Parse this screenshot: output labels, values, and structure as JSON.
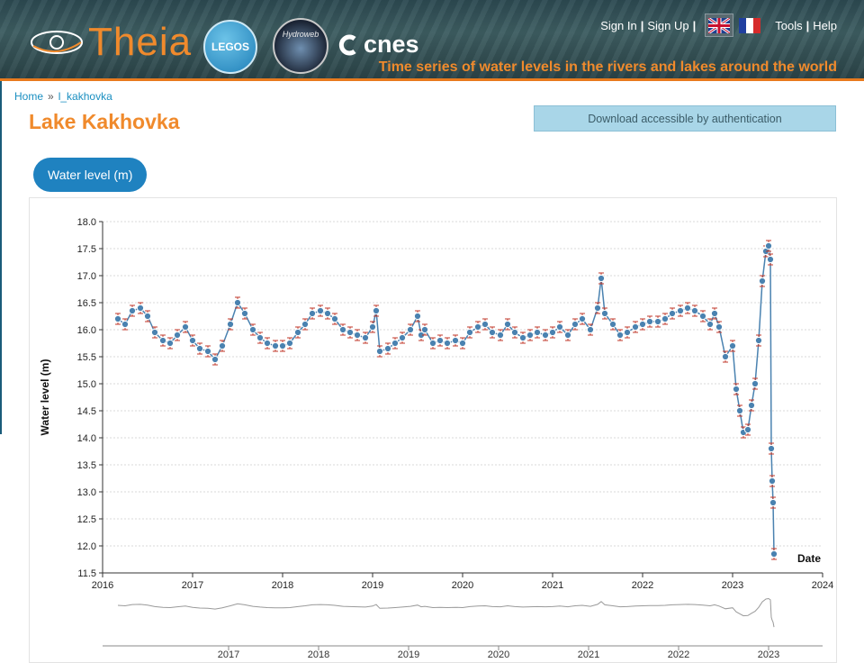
{
  "header": {
    "brand": "Theia",
    "partner_logos": [
      "LEGOS",
      "Hydroweb",
      "cnes"
    ],
    "nav": {
      "sign_in": "Sign In",
      "sign_up": "Sign Up",
      "tools": "Tools",
      "help": "Help"
    },
    "languages": [
      "english-flag",
      "french-flag"
    ],
    "tagline": "Time series of water levels in the rivers and lakes around the world"
  },
  "breadcrumb": {
    "home": "Home",
    "separator": "»",
    "current": "l_kakhovka"
  },
  "page_title": "Lake Kakhovka",
  "download_label": "Download accessible by authentication",
  "tab_label": "Water level (m)",
  "colors": {
    "accent_orange": "#f08a2c",
    "link_blue": "#1a8fc1",
    "series": "#4a82b0",
    "error_bar": "#c0392b"
  },
  "chart_data": {
    "type": "scatter",
    "title": "",
    "xlabel": "Date",
    "ylabel": "Water level (m)",
    "xlim": [
      2016,
      2024
    ],
    "ylim": [
      11.5,
      18.0
    ],
    "x_ticks": [
      "2016",
      "2017",
      "2018",
      "2019",
      "2020",
      "2021",
      "2022",
      "2023",
      "2024"
    ],
    "y_ticks": [
      "11.5",
      "12.0",
      "12.5",
      "13.0",
      "13.5",
      "14.0",
      "14.5",
      "15.0",
      "15.5",
      "16.0",
      "16.5",
      "17.0",
      "17.5",
      "18.0"
    ],
    "grid": true,
    "overview_ticks": [
      "2017",
      "2018",
      "2019",
      "2020",
      "2021",
      "2022",
      "2023"
    ],
    "series": [
      {
        "x": [
          2016.17,
          2016.25,
          2016.33,
          2016.42,
          2016.5,
          2016.58,
          2016.67,
          2016.75,
          2016.83,
          2016.92,
          2017.0,
          2017.08,
          2017.17,
          2017.25,
          2017.33,
          2017.42,
          2017.5,
          2017.58,
          2017.67,
          2017.75,
          2017.83,
          2017.92,
          2018.0,
          2018.08,
          2018.17,
          2018.25,
          2018.33,
          2018.42,
          2018.5,
          2018.58,
          2018.67,
          2018.75,
          2018.83,
          2018.92,
          2019.0,
          2019.04,
          2019.08,
          2019.17,
          2019.25,
          2019.33,
          2019.42,
          2019.5,
          2019.54,
          2019.58,
          2019.67,
          2019.75,
          2019.83,
          2019.92,
          2020.0,
          2020.08,
          2020.17,
          2020.25,
          2020.33,
          2020.42,
          2020.5,
          2020.58,
          2020.67,
          2020.75,
          2020.83,
          2020.92,
          2021.0,
          2021.08,
          2021.17,
          2021.25,
          2021.33,
          2021.42,
          2021.5,
          2021.54,
          2021.58,
          2021.67,
          2021.75,
          2021.83,
          2021.92,
          2022.0,
          2022.08,
          2022.17,
          2022.25,
          2022.33,
          2022.42,
          2022.5,
          2022.58,
          2022.67,
          2022.75,
          2022.8,
          2022.85,
          2022.92,
          2023.0,
          2023.04,
          2023.08,
          2023.12,
          2023.17,
          2023.21,
          2023.25,
          2023.29,
          2023.33,
          2023.37,
          2023.4,
          2023.42,
          2023.43,
          2023.44,
          2023.45,
          2023.46
        ],
        "y": [
          16.2,
          16.1,
          16.35,
          16.4,
          16.25,
          15.95,
          15.8,
          15.75,
          15.9,
          16.05,
          15.8,
          15.65,
          15.6,
          15.45,
          15.7,
          16.1,
          16.5,
          16.3,
          16.0,
          15.85,
          15.75,
          15.7,
          15.7,
          15.75,
          15.95,
          16.1,
          16.3,
          16.35,
          16.3,
          16.2,
          16.0,
          15.95,
          15.9,
          15.85,
          16.05,
          16.35,
          15.6,
          15.65,
          15.75,
          15.85,
          16.0,
          16.25,
          15.9,
          16.0,
          15.75,
          15.8,
          15.75,
          15.8,
          15.75,
          15.95,
          16.05,
          16.1,
          15.95,
          15.9,
          16.1,
          15.95,
          15.85,
          15.9,
          15.95,
          15.9,
          15.95,
          16.05,
          15.9,
          16.1,
          16.2,
          16.0,
          16.4,
          16.95,
          16.3,
          16.1,
          15.9,
          15.95,
          16.05,
          16.1,
          16.15,
          16.15,
          16.2,
          16.3,
          16.35,
          16.4,
          16.35,
          16.25,
          16.1,
          16.3,
          16.05,
          15.5,
          15.7,
          14.9,
          14.5,
          14.1,
          14.15,
          14.6,
          15.0,
          15.8,
          16.9,
          17.45,
          17.55,
          17.3,
          13.8,
          13.2,
          12.8,
          11.85
        ]
      }
    ]
  }
}
